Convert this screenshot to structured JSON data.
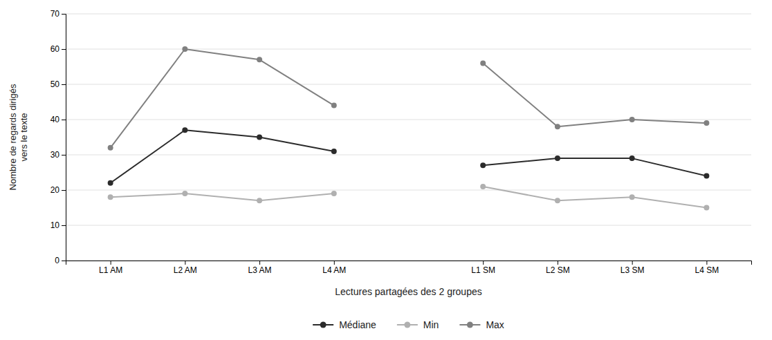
{
  "chart_data": {
    "type": "line",
    "categories": [
      "L1 AM",
      "L2 AM",
      "L3 AM",
      "L4 AM",
      null,
      "L1 SM",
      "L2 SM",
      "L3 SM",
      "L4 SM"
    ],
    "series": [
      {
        "name": "Médiane",
        "color": "#2b2b2b",
        "values": [
          22,
          37,
          35,
          31,
          null,
          27,
          29,
          29,
          24
        ]
      },
      {
        "name": "Min",
        "color": "#b0b0b0",
        "values": [
          18,
          19,
          17,
          19,
          null,
          21,
          17,
          18,
          15
        ]
      },
      {
        "name": "Max",
        "color": "#808080",
        "values": [
          32,
          60,
          57,
          44,
          null,
          56,
          38,
          40,
          39
        ]
      }
    ],
    "xlabel": "Lectures partagées des 2 groupes",
    "ylabel": "Nombre de regards dirigés\nvers le texte",
    "ylim": [
      0,
      70
    ],
    "yticks": [
      0,
      10,
      20,
      30,
      40,
      50,
      60,
      70
    ],
    "grid": true,
    "legend": "bottom",
    "marker": "circle"
  }
}
